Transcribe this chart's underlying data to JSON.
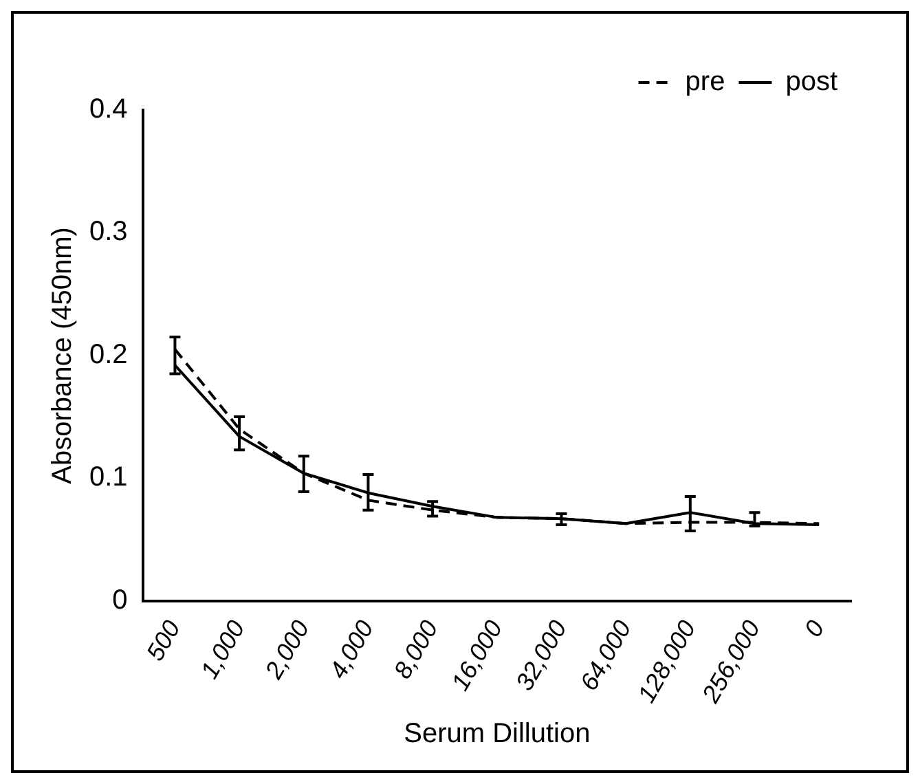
{
  "chart_data": {
    "type": "line",
    "xlabel": "Serum Dillution",
    "ylabel": "Absorbance (450nm)",
    "categories": [
      "500",
      "1,000",
      "2,000",
      "4,000",
      "8,000",
      "16,000",
      "32,000",
      "64,000",
      "128,000",
      "256,000",
      "0"
    ],
    "series": [
      {
        "name": "pre",
        "color": "#000000",
        "line_style": "dashed",
        "values": [
          0.205,
          0.14,
          0.104,
          0.082,
          0.074,
          0.068,
          0.067,
          0.063,
          0.064,
          0.064,
          0.063
        ]
      },
      {
        "name": "post",
        "color": "#000000",
        "line_style": "solid",
        "values": [
          0.192,
          0.134,
          0.104,
          0.088,
          0.077,
          0.068,
          0.067,
          0.063,
          0.072,
          0.063,
          0.062
        ],
        "errors": [
          [
            0.185,
            0.215
          ],
          [
            0.123,
            0.15
          ],
          [
            0.089,
            0.118
          ],
          [
            0.074,
            0.103
          ],
          [
            0.069,
            0.081
          ],
          null,
          [
            0.062,
            0.071
          ],
          null,
          [
            0.057,
            0.085
          ],
          [
            0.061,
            0.072
          ],
          null
        ]
      }
    ],
    "ylim": [
      0,
      0.4
    ],
    "yticks": [
      0,
      0.1,
      0.2,
      0.3,
      0.4
    ],
    "grid": false,
    "legend": "top right",
    "marker": "none"
  }
}
